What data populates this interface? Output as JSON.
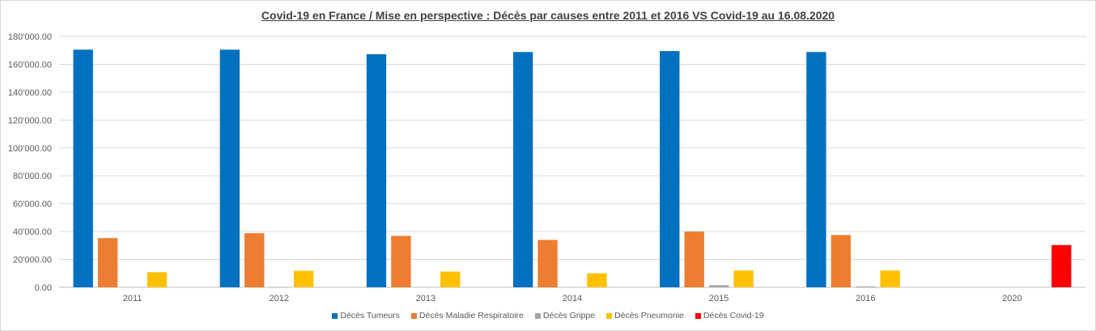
{
  "chart_data": {
    "type": "bar",
    "title": "Covid-19 en France / Mise en perspective : Décès par causes entre 2011 et 2016 VS Covid-19 au 16.08.2020",
    "xlabel": "",
    "ylabel": "",
    "ylim": [
      0,
      180000
    ],
    "yticks": [
      "0.00",
      "20'000.00",
      "40'000.00",
      "60'000.00",
      "80'000.00",
      "100'000.00",
      "120'000.00",
      "140'000.00",
      "160'000.00",
      "180'000.00"
    ],
    "categories": [
      "2011",
      "2012",
      "2013",
      "2014",
      "2015",
      "2016",
      "2020"
    ],
    "grid": true,
    "legend_position": "bottom",
    "series": [
      {
        "name": "Décès Tumeurs",
        "color": "#0070C0",
        "values": [
          170500,
          170500,
          167200,
          168800,
          169500,
          168800,
          0
        ]
      },
      {
        "name": "Décès Maladie Respiratoire",
        "color": "#ED7D31",
        "values": [
          35300,
          38800,
          36900,
          34000,
          40000,
          37500,
          0
        ]
      },
      {
        "name": "Décès Grippe",
        "color": "#A5A5A5",
        "values": [
          150,
          350,
          200,
          100,
          1500,
          600,
          0
        ]
      },
      {
        "name": "Décès Pneumonie",
        "color": "#FFC000",
        "values": [
          10800,
          11800,
          11300,
          10000,
          12000,
          12000,
          0
        ]
      },
      {
        "name": "Décès Covid-19",
        "color": "#FF0000",
        "values": [
          0,
          0,
          0,
          0,
          0,
          0,
          30300
        ]
      }
    ]
  }
}
